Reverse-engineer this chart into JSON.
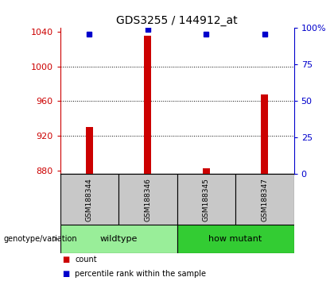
{
  "title": "GDS3255 / 144912_at",
  "samples": [
    "GSM188344",
    "GSM188346",
    "GSM188345",
    "GSM188347"
  ],
  "counts": [
    930,
    1035,
    883,
    968
  ],
  "percentiles": [
    96,
    99,
    96,
    96
  ],
  "ylim": [
    876,
    1044
  ],
  "yticks": [
    880,
    920,
    960,
    1000,
    1040
  ],
  "right_yticks": [
    0,
    25,
    50,
    75,
    100
  ],
  "right_ylim": [
    0,
    100
  ],
  "bar_color": "#cc0000",
  "dot_color": "#0000cc",
  "groups": [
    {
      "label": "wildtype",
      "samples": [
        0,
        1
      ],
      "color": "#99ee99"
    },
    {
      "label": "how mutant",
      "samples": [
        2,
        3
      ],
      "color": "#33cc33"
    }
  ],
  "sample_cell_color": "#c8c8c8",
  "title_fontsize": 10,
  "axis_label_color_left": "#cc0000",
  "axis_label_color_right": "#0000cc",
  "bar_width": 0.12
}
